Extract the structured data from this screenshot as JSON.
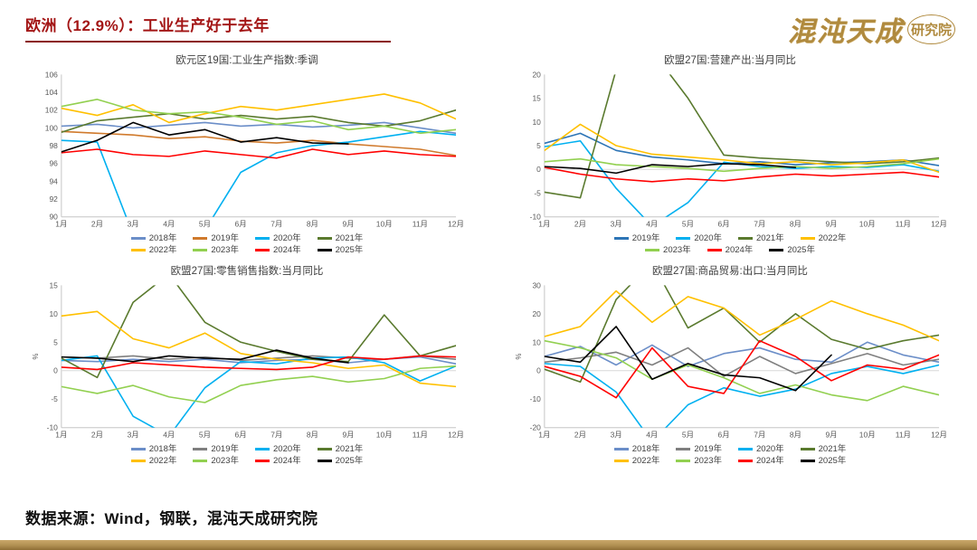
{
  "page": {
    "title": "欧洲（12.9%）：工业生产好于去年",
    "logo_main": "混沌天成",
    "logo_sub": "研究院",
    "source": "数据来源：Wind，钢联，混沌天成研究院"
  },
  "colors": {
    "title": "#A31515",
    "title_rule": "#8B1A1A",
    "logo_gold": "#B08A3E",
    "axis": "#C6C6C6",
    "zero_line": "#D9D9D9",
    "tick_text": "#595959",
    "bottom_bar": "#B08F52"
  },
  "chart_data": [
    {
      "type": "line",
      "title": "欧元区19国:工业生产指数:季调",
      "categories": [
        "1月",
        "2月",
        "3月",
        "4月",
        "5月",
        "6月",
        "7月",
        "8月",
        "9月",
        "10月",
        "11月",
        "12月"
      ],
      "ylim": [
        90,
        106
      ],
      "yticks": [
        90,
        92,
        94,
        96,
        98,
        100,
        102,
        104,
        106
      ],
      "ylabel": "",
      "grid": false,
      "legend_position": "bottom",
      "series": [
        {
          "name": "2018年",
          "color": "#6B8EC8",
          "values": [
            100.2,
            100.4,
            100.0,
            100.3,
            100.6,
            100.2,
            100.4,
            100.1,
            100.3,
            100.6,
            100.0,
            99.4
          ]
        },
        {
          "name": "2019年",
          "color": "#D07A2C",
          "values": [
            99.6,
            99.4,
            99.2,
            98.8,
            99.0,
            98.5,
            98.3,
            98.6,
            98.2,
            97.9,
            97.6,
            96.9
          ]
        },
        {
          "name": "2020年",
          "color": "#00B0F0",
          "values": [
            98.6,
            98.4,
            88.0,
            79.0,
            88.5,
            95.0,
            97.2,
            98.0,
            98.4,
            99.0,
            99.6,
            99.2
          ]
        },
        {
          "name": "2021年",
          "color": "#5A7A2E",
          "values": [
            99.5,
            100.8,
            101.2,
            101.6,
            101.0,
            101.4,
            101.0,
            101.3,
            100.6,
            100.2,
            100.8,
            102.0
          ]
        },
        {
          "name": "2022年",
          "color": "#FFC000",
          "values": [
            102.2,
            101.4,
            102.6,
            100.6,
            101.6,
            102.4,
            102.0,
            102.6,
            103.2,
            103.8,
            102.8,
            101.0
          ]
        },
        {
          "name": "2023年",
          "color": "#92D050",
          "values": [
            102.4,
            103.2,
            102.0,
            101.6,
            101.8,
            101.2,
            100.4,
            100.8,
            99.8,
            100.2,
            99.4,
            99.8
          ]
        },
        {
          "name": "2024年",
          "color": "#FF0000",
          "values": [
            97.2,
            97.6,
            97.0,
            96.8,
            97.4,
            97.0,
            96.6,
            97.6,
            97.0,
            97.4,
            97.0,
            96.8
          ]
        },
        {
          "name": "2025年",
          "color": "#000000",
          "values": [
            97.3,
            98.6,
            100.6,
            99.2,
            99.8,
            98.4,
            98.9,
            98.3,
            98.2
          ]
        }
      ]
    },
    {
      "type": "line",
      "title": "欧盟27国:营建产出:当月同比",
      "categories": [
        "1月",
        "2月",
        "3月",
        "4月",
        "5月",
        "6月",
        "7月",
        "8月",
        "9月",
        "10月",
        "11月",
        "12月"
      ],
      "ylim": [
        -10,
        20
      ],
      "yticks": [
        -10,
        -5,
        0,
        5,
        10,
        15,
        20
      ],
      "ylabel": "",
      "grid": false,
      "legend_position": "bottom",
      "series": [
        {
          "name": "2019年",
          "color": "#2E75B6",
          "values": [
            5.5,
            7.6,
            4.0,
            2.6,
            2.0,
            1.2,
            1.6,
            1.0,
            1.4,
            1.6,
            2.0,
            0.8
          ]
        },
        {
          "name": "2020年",
          "color": "#00B0F0",
          "values": [
            4.8,
            6.0,
            -4.0,
            -12.0,
            -7.0,
            1.5,
            0.6,
            0.2,
            0.6,
            0.4,
            1.0,
            -0.4
          ]
        },
        {
          "name": "2021年",
          "color": "#5A7A2E",
          "values": [
            -4.8,
            -6.0,
            21.0,
            25.0,
            15.0,
            3.0,
            2.4,
            2.0,
            1.6,
            1.2,
            1.6,
            2.4
          ]
        },
        {
          "name": "2022年",
          "color": "#FFC000",
          "values": [
            4.0,
            9.5,
            5.0,
            3.2,
            2.6,
            2.0,
            1.2,
            1.6,
            1.0,
            1.4,
            2.0,
            -0.6
          ]
        },
        {
          "name": "2023年",
          "color": "#92D050",
          "values": [
            1.6,
            2.2,
            1.0,
            0.6,
            0.2,
            -0.4,
            0.2,
            0.6,
            0.2,
            0.6,
            1.2,
            2.2
          ]
        },
        {
          "name": "2024年",
          "color": "#FF0000",
          "values": [
            0.4,
            -1.0,
            -2.0,
            -2.6,
            -2.0,
            -2.4,
            -1.6,
            -1.0,
            -1.4,
            -1.0,
            -0.6,
            -1.6
          ]
        },
        {
          "name": "2025年",
          "color": "#000000",
          "values": [
            0.6,
            0.2,
            -0.8,
            1.0,
            0.6,
            1.2,
            1.0,
            0.4
          ]
        }
      ]
    },
    {
      "type": "line",
      "title": "欧盟27国:零售销售指数:当月同比",
      "categories": [
        "1月",
        "2月",
        "3月",
        "4月",
        "5月",
        "6月",
        "7月",
        "8月",
        "9月",
        "10月",
        "11月",
        "12月"
      ],
      "ylim": [
        -10,
        15
      ],
      "yticks": [
        -10,
        -5,
        0,
        5,
        10,
        15
      ],
      "ylabel": "%",
      "grid": false,
      "legend_position": "bottom",
      "series": [
        {
          "name": "2018年",
          "color": "#6B8EC8",
          "values": [
            1.8,
            1.6,
            2.0,
            1.6,
            2.0,
            1.4,
            1.8,
            2.0,
            1.4,
            2.0,
            2.4,
            1.2
          ]
        },
        {
          "name": "2019年",
          "color": "#7F7F7F",
          "values": [
            2.4,
            2.2,
            2.6,
            2.0,
            2.4,
            1.8,
            2.2,
            2.6,
            2.2,
            2.0,
            2.6,
            2.0
          ]
        },
        {
          "name": "2020年",
          "color": "#00B0F0",
          "values": [
            1.8,
            2.6,
            -8.0,
            -11.5,
            -3.0,
            1.6,
            1.2,
            2.2,
            2.4,
            1.4,
            -1.8,
            0.8
          ]
        },
        {
          "name": "2021年",
          "color": "#5A7A2E",
          "values": [
            2.2,
            -1.2,
            12.0,
            17.0,
            8.5,
            5.0,
            3.4,
            2.0,
            1.6,
            9.8,
            2.6,
            4.4
          ]
        },
        {
          "name": "2022年",
          "color": "#FFC000",
          "values": [
            9.6,
            10.4,
            5.6,
            4.0,
            6.6,
            3.0,
            2.0,
            1.4,
            0.4,
            1.0,
            -2.2,
            -2.8
          ]
        },
        {
          "name": "2023年",
          "color": "#92D050",
          "values": [
            -2.8,
            -4.0,
            -2.6,
            -4.6,
            -5.6,
            -2.6,
            -1.6,
            -1.0,
            -2.0,
            -1.4,
            0.4,
            0.8
          ]
        },
        {
          "name": "2024年",
          "color": "#FF0000",
          "values": [
            0.6,
            0.2,
            1.4,
            1.0,
            0.6,
            0.4,
            0.2,
            0.6,
            2.4,
            2.0,
            2.6,
            2.4
          ]
        },
        {
          "name": "2025年",
          "color": "#000000",
          "values": [
            2.4,
            2.2,
            1.6,
            2.6,
            2.2,
            2.0,
            3.6,
            2.2,
            1.4
          ]
        }
      ]
    },
    {
      "type": "line",
      "title": "欧盟27国:商品贸易:出口:当月同比",
      "categories": [
        "1月",
        "2月",
        "3月",
        "4月",
        "5月",
        "6月",
        "7月",
        "8月",
        "9月",
        "10月",
        "11月",
        "12月"
      ],
      "ylim": [
        -20,
        30
      ],
      "yticks": [
        -20,
        -10,
        0,
        10,
        20,
        30
      ],
      "ylabel": "%",
      "grid": false,
      "legend_position": "bottom",
      "series": [
        {
          "name": "2018年",
          "color": "#6B8EC8",
          "values": [
            5.0,
            8.5,
            2.0,
            9.0,
            1.5,
            6.0,
            8.0,
            4.0,
            3.0,
            10.0,
            5.5,
            3.0
          ]
        },
        {
          "name": "2019年",
          "color": "#7F7F7F",
          "values": [
            3.0,
            4.5,
            6.5,
            2.0,
            8.0,
            -2.0,
            5.0,
            -1.0,
            2.5,
            6.0,
            2.0,
            4.0
          ]
        },
        {
          "name": "2020年",
          "color": "#00B0F0",
          "values": [
            2.5,
            1.5,
            -7.5,
            -25.0,
            -12.0,
            -6.0,
            -9.0,
            -6.5,
            -1.0,
            1.5,
            -1.0,
            2.0
          ]
        },
        {
          "name": "2021年",
          "color": "#5A7A2E",
          "values": [
            0.5,
            -4.0,
            25.0,
            38.0,
            15.0,
            22.0,
            10.0,
            20.0,
            11.0,
            7.5,
            10.5,
            12.5
          ]
        },
        {
          "name": "2022年",
          "color": "#FFC000",
          "values": [
            12.0,
            15.5,
            28.0,
            17.0,
            26.0,
            22.0,
            12.5,
            18.0,
            24.5,
            20.0,
            16.0,
            10.5
          ]
        },
        {
          "name": "2023年",
          "color": "#92D050",
          "values": [
            10.5,
            8.0,
            4.5,
            -3.0,
            2.0,
            -2.5,
            -8.0,
            -5.0,
            -8.5,
            -10.5,
            -5.5,
            -8.5
          ]
        },
        {
          "name": "2024年",
          "color": "#FF0000",
          "values": [
            1.5,
            -2.0,
            -9.5,
            8.0,
            -5.5,
            -8.0,
            10.5,
            5.0,
            -3.5,
            2.0,
            0.5,
            5.5
          ]
        },
        {
          "name": "2025年",
          "color": "#000000",
          "values": [
            5.0,
            3.0,
            15.5,
            -3.0,
            2.5,
            -1.5,
            -2.5,
            -7.0,
            5.5
          ]
        }
      ]
    }
  ]
}
